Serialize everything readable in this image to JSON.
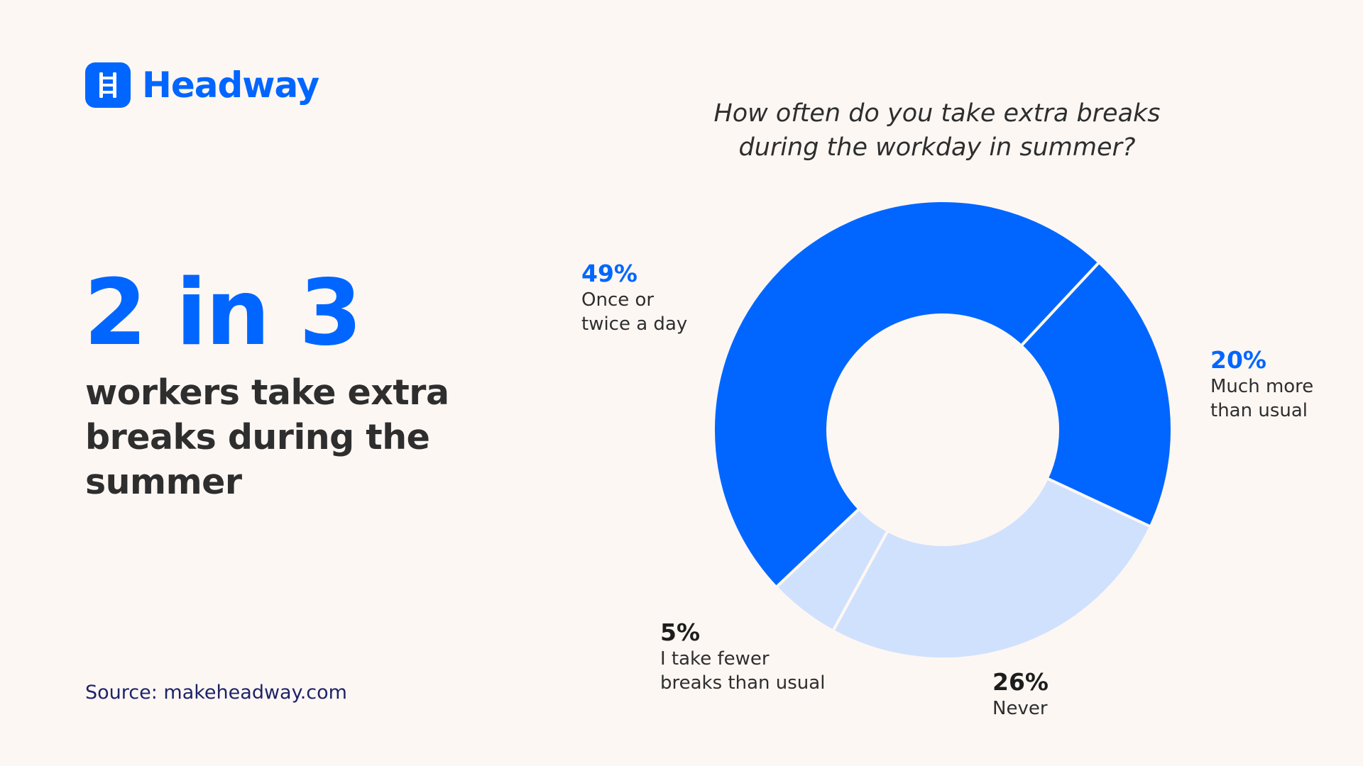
{
  "brand": {
    "name": "Headway",
    "icon": "ladder-icon"
  },
  "headline": "2 in 3",
  "subheadline": "workers take extra breaks during the summer",
  "source": "Source: makeheadway.com",
  "colors": {
    "primary": "#0066ff",
    "light": "#cfe1fd",
    "text_dark": "#2e2e2e",
    "source_text": "#1d2468",
    "background": "#fdf7f4"
  },
  "chart_data": {
    "type": "pie",
    "title": "How often do you take extra breaks during the workday in summer?",
    "slices": [
      {
        "label": "Much more than usual",
        "value": 20,
        "display": "20%",
        "color": "#0066ff"
      },
      {
        "label": "Never",
        "value": 26,
        "display": "26%",
        "color": "#cfe1fd"
      },
      {
        "label": "I take fewer breaks than usual",
        "value": 5,
        "display": "5%",
        "color": "#cfe1fd"
      },
      {
        "label": "Once or twice a day",
        "value": 49,
        "display": "49%",
        "color": "#0066ff"
      }
    ],
    "legend": "none",
    "donut": true
  },
  "labels": {
    "once": {
      "pct": "49%",
      "text": "Once or\ntwice a day"
    },
    "much_more": {
      "pct": "20%",
      "text": "Much more\nthan usual"
    },
    "fewer": {
      "pct": "5%",
      "text": "I take fewer\nbreaks than usual"
    },
    "never": {
      "pct": "26%",
      "text": "Never"
    }
  }
}
